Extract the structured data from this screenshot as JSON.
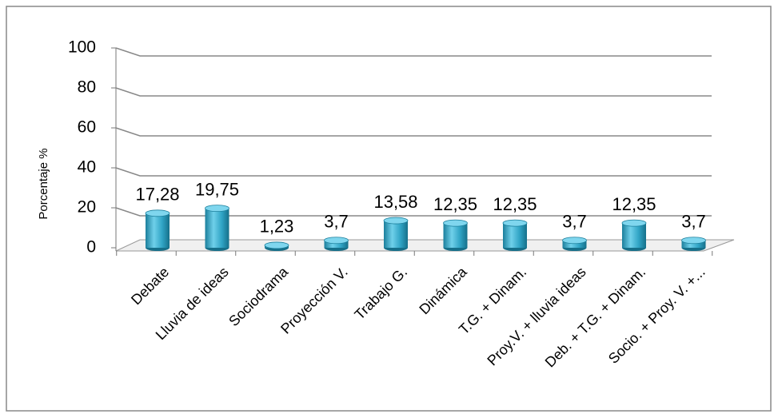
{
  "chart_data": {
    "type": "bar",
    "ylabel": "Porcentaje %",
    "categories": [
      "Debate",
      "Lluvia de ideas",
      "Sociodrama",
      "Proyección V.",
      "Trabajo G.",
      "Dinámica",
      "T.G. + Dinam.",
      "Proy.V. + lluvia ideas",
      "Deb. + T.G. + Dinam.",
      "Socio. + Proy. V. +..."
    ],
    "values": [
      17.28,
      19.75,
      1.23,
      3.7,
      13.58,
      12.35,
      12.35,
      3.7,
      12.35,
      3.7
    ],
    "value_labels": [
      "17,28",
      "19,75",
      "1,23",
      "3,7",
      "13,58",
      "12,35",
      "12,35",
      "3,7",
      "12,35",
      "3,7"
    ],
    "color": "#2fa3c4",
    "ylim": [
      0,
      100
    ],
    "yticks": [
      0,
      20,
      40,
      60,
      80,
      100
    ],
    "grid": true
  }
}
